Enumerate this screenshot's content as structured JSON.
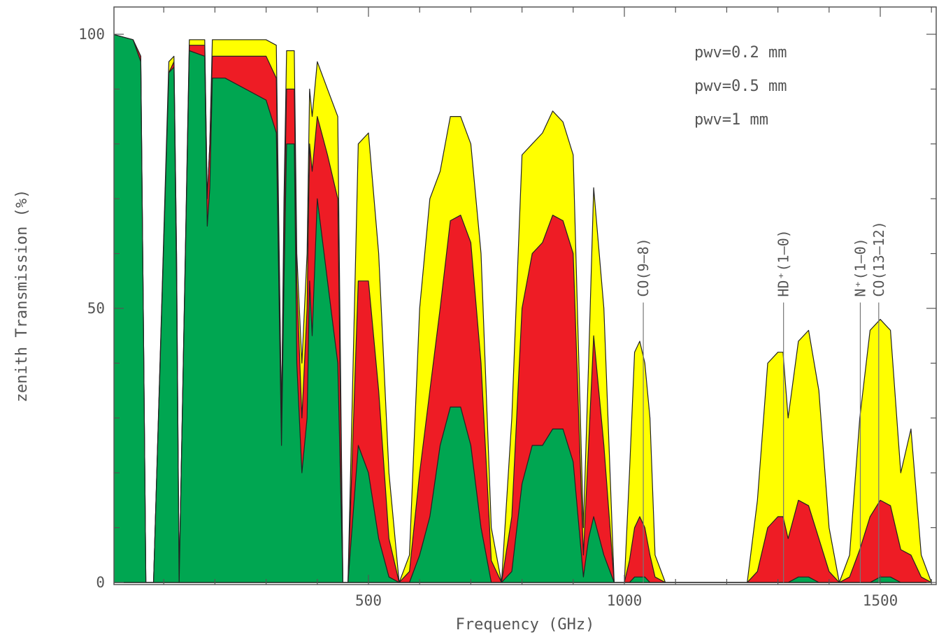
{
  "chart_data": {
    "type": "area",
    "xlabel": "Frequency (GHz)",
    "ylabel": "zenith Transmission (%)",
    "xlim": [
      0,
      1600
    ],
    "ylim": [
      0,
      100
    ],
    "x_ticks": [
      500,
      1000,
      1500
    ],
    "y_ticks": [
      0,
      50,
      100
    ],
    "legend_position": "top-right",
    "colors": {
      "pwv_0_2": "#ffff00",
      "pwv_0_5": "#ee1c25",
      "pwv_1": "#00a651",
      "outline": "#222222",
      "axis": "#555555"
    },
    "series": [
      {
        "name": "pwv=0.2 mm",
        "color": "#ffff00",
        "legend_color": "#444444",
        "x": [
          0,
          40,
          55,
          60,
          65,
          80,
          110,
          120,
          125,
          130,
          150,
          180,
          185,
          190,
          195,
          220,
          300,
          320,
          330,
          335,
          340,
          355,
          360,
          370,
          380,
          385,
          390,
          400,
          420,
          440,
          450,
          460,
          480,
          500,
          520,
          540,
          560,
          580,
          600,
          620,
          640,
          660,
          680,
          700,
          720,
          740,
          760,
          780,
          800,
          820,
          840,
          860,
          880,
          900,
          920,
          930,
          940,
          960,
          980,
          1000,
          1010,
          1020,
          1030,
          1040,
          1050,
          1060,
          1080,
          1100,
          1200,
          1240,
          1260,
          1280,
          1300,
          1310,
          1320,
          1340,
          1360,
          1380,
          1400,
          1420,
          1440,
          1460,
          1480,
          1500,
          1520,
          1540,
          1560,
          1580,
          1600
        ],
        "y": [
          100,
          99,
          96,
          50,
          0,
          0,
          95,
          96,
          60,
          0,
          99,
          99,
          70,
          80,
          99,
          99,
          99,
          98,
          30,
          70,
          97,
          97,
          60,
          40,
          60,
          90,
          85,
          95,
          90,
          85,
          0,
          0,
          80,
          82,
          60,
          20,
          0,
          5,
          50,
          70,
          75,
          85,
          85,
          80,
          60,
          10,
          0,
          30,
          78,
          80,
          82,
          86,
          84,
          78,
          10,
          40,
          72,
          50,
          0,
          0,
          20,
          42,
          44,
          40,
          30,
          5,
          0,
          0,
          0,
          0,
          15,
          40,
          42,
          42,
          30,
          44,
          46,
          35,
          10,
          0,
          5,
          30,
          46,
          48,
          46,
          20,
          28,
          5,
          0
        ]
      },
      {
        "name": "pwv=0.5 mm",
        "color": "#ee1c25",
        "legend_color": "#ee1c25",
        "x": [
          0,
          40,
          55,
          60,
          65,
          80,
          110,
          120,
          125,
          130,
          150,
          180,
          185,
          190,
          195,
          220,
          300,
          320,
          330,
          335,
          340,
          355,
          360,
          370,
          380,
          385,
          390,
          400,
          420,
          440,
          450,
          460,
          480,
          500,
          520,
          540,
          560,
          580,
          600,
          620,
          640,
          660,
          680,
          700,
          720,
          740,
          760,
          780,
          800,
          820,
          840,
          860,
          880,
          900,
          920,
          930,
          940,
          960,
          980,
          1000,
          1010,
          1020,
          1030,
          1040,
          1050,
          1060,
          1080,
          1100,
          1200,
          1240,
          1260,
          1280,
          1300,
          1310,
          1320,
          1340,
          1360,
          1380,
          1400,
          1420,
          1440,
          1460,
          1480,
          1500,
          1520,
          1540,
          1560,
          1580,
          1600
        ],
        "y": [
          100,
          99,
          96,
          50,
          0,
          0,
          93,
          95,
          60,
          0,
          98,
          98,
          70,
          80,
          96,
          96,
          96,
          92,
          30,
          65,
          90,
          90,
          55,
          30,
          50,
          80,
          75,
          85,
          78,
          70,
          0,
          0,
          55,
          55,
          35,
          8,
          0,
          2,
          20,
          35,
          50,
          66,
          67,
          62,
          40,
          4,
          0,
          12,
          50,
          60,
          62,
          67,
          66,
          60,
          5,
          25,
          45,
          25,
          0,
          0,
          4,
          10,
          12,
          10,
          5,
          1,
          0,
          0,
          0,
          0,
          2,
          10,
          12,
          12,
          8,
          15,
          14,
          8,
          2,
          0,
          1,
          6,
          12,
          15,
          14,
          6,
          5,
          1,
          0
        ]
      },
      {
        "name": "pwv=1 mm",
        "color": "#00a651",
        "legend_color": "#00a651",
        "x": [
          0,
          40,
          55,
          60,
          65,
          80,
          110,
          120,
          125,
          130,
          150,
          180,
          185,
          190,
          195,
          220,
          300,
          320,
          330,
          335,
          340,
          355,
          360,
          370,
          380,
          385,
          390,
          400,
          420,
          440,
          450,
          460,
          480,
          500,
          520,
          540,
          560,
          580,
          600,
          620,
          640,
          660,
          680,
          700,
          720,
          740,
          760,
          780,
          800,
          820,
          840,
          860,
          880,
          900,
          920,
          930,
          940,
          960,
          980,
          1000,
          1010,
          1020,
          1030,
          1040,
          1050,
          1060,
          1080,
          1100,
          1200,
          1240,
          1260,
          1280,
          1300,
          1310,
          1320,
          1340,
          1360,
          1380,
          1400,
          1420,
          1440,
          1460,
          1480,
          1500,
          1520,
          1540,
          1560,
          1580,
          1600
        ],
        "y": [
          100,
          99,
          95,
          50,
          0,
          0,
          93,
          94,
          55,
          0,
          97,
          96,
          65,
          72,
          92,
          92,
          88,
          82,
          25,
          55,
          80,
          80,
          40,
          20,
          30,
          55,
          45,
          70,
          55,
          40,
          0,
          0,
          25,
          20,
          8,
          1,
          0,
          0,
          5,
          12,
          25,
          32,
          32,
          25,
          10,
          0,
          0,
          2,
          18,
          25,
          25,
          28,
          28,
          22,
          1,
          8,
          12,
          5,
          0,
          0,
          0,
          1,
          1,
          1,
          0,
          0,
          0,
          0,
          0,
          0,
          0,
          0,
          0,
          0,
          0,
          1,
          1,
          0,
          0,
          0,
          0,
          0,
          0,
          1,
          1,
          0,
          0,
          0,
          0
        ]
      }
    ],
    "annotations": [
      {
        "label": "CO(9–8)",
        "x": 1037,
        "line_top": 60
      },
      {
        "label": "HD⁺(1–0)",
        "x": 1311,
        "line_top": 60
      },
      {
        "label": "N⁺(1–0)",
        "x": 1461,
        "line_top": 60
      },
      {
        "label": "CO(13–12)",
        "x": 1497,
        "line_top": 60
      }
    ]
  }
}
